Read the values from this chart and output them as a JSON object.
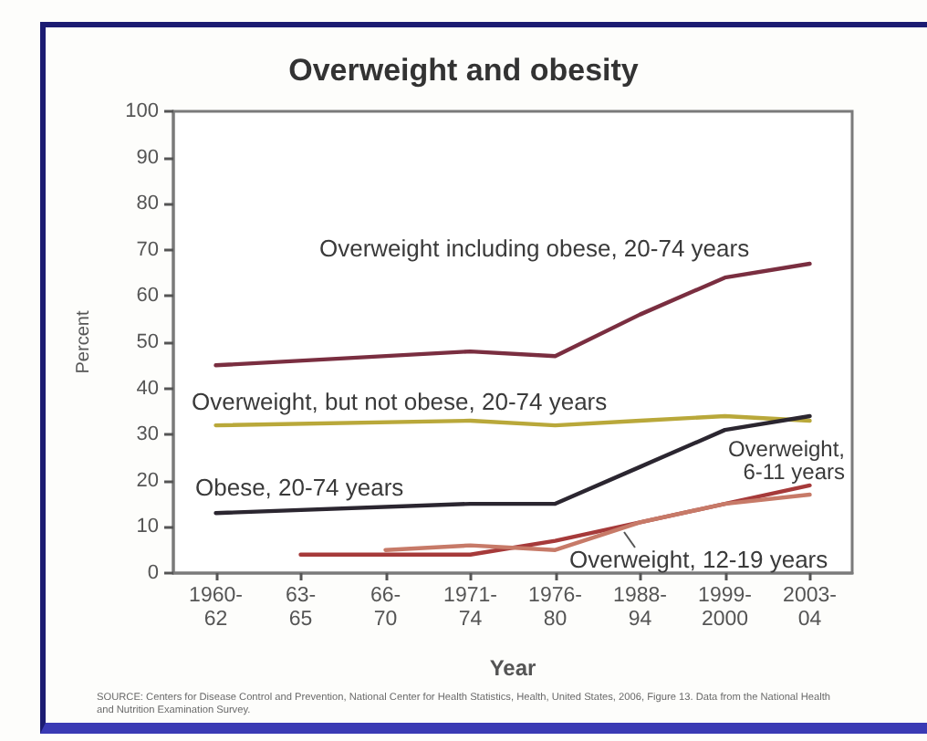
{
  "chart_data": {
    "type": "line",
    "title": "Overweight and obesity",
    "xlabel": "Year",
    "ylabel": "Percent",
    "categories": [
      "1960-62",
      "63-65",
      "66-70",
      "1971-74",
      "1976-80",
      "1988-94",
      "1999-2000",
      "2003-04"
    ],
    "ylim": [
      0,
      100
    ],
    "yticks": [
      0,
      10,
      20,
      30,
      40,
      50,
      60,
      70,
      80,
      90,
      100
    ],
    "series": [
      {
        "name": "Overweight including obese, 20-74 years",
        "color": "#7a2e40",
        "values": [
          45,
          null,
          null,
          48,
          47,
          56,
          64,
          67
        ]
      },
      {
        "name": "Overweight, but not obese, 20-74 years",
        "color": "#b9a83a",
        "values": [
          32,
          null,
          null,
          33,
          32,
          33,
          34,
          33
        ]
      },
      {
        "name": "Obese, 20-74 years",
        "color": "#2b2630",
        "values": [
          13,
          null,
          null,
          15,
          15,
          23,
          31,
          34
        ]
      },
      {
        "name": "Overweight, 6-11 years",
        "color": "#a63a3a",
        "values": [
          null,
          4,
          null,
          4,
          7,
          11,
          15,
          19
        ]
      },
      {
        "name": "Overweight, 12-19 years",
        "color": "#c77a68",
        "values": [
          null,
          null,
          5,
          6,
          5,
          11,
          15,
          17
        ]
      }
    ],
    "marker": "none",
    "legend": false,
    "grid": false,
    "annotations": [
      "SOURCE: Centers for Disease Control and Prevention, National Center for Health Statistics, Health, United States, 2006, Figure 13. Data from the National Health and Nutrition Examination Survey."
    ]
  }
}
